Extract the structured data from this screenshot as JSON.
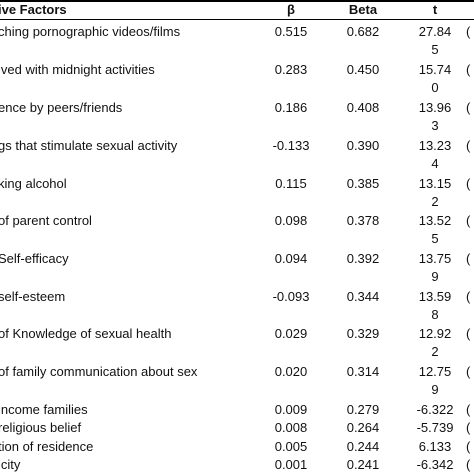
{
  "table": {
    "headers": {
      "factor": "ive Factors",
      "beta_symbol": "β",
      "beta": "Beta",
      "t": "t"
    },
    "rows": [
      {
        "factor": "ching pornographic videos/films",
        "b": "0.515",
        "beta": "0.682",
        "t": "27.84",
        "t_tail": "5"
      },
      {
        "factor": "lved with midnight activities",
        "b": "0.283",
        "beta": "0.450",
        "t": "15.74",
        "t_tail": "0"
      },
      {
        "factor": "ence by peers/friends",
        "b": "0.186",
        "beta": "0.408",
        "t": "13.96",
        "t_tail": "3"
      },
      {
        "factor": "gs that stimulate sexual activity",
        "b": "-0.133",
        "beta": "0.390",
        "t": "13.23",
        "t_tail": "4"
      },
      {
        "factor": "king alcohol",
        "b": "0.115",
        "beta": "0.385",
        "t": "13.15",
        "t_tail": "2"
      },
      {
        "factor": "of parent control",
        "b": "0.098",
        "beta": "0.378",
        "t": "13.52",
        "t_tail": "5"
      },
      {
        "factor": "Self-efficacy",
        "b": "0.094",
        "beta": "0.392",
        "t": "13.75",
        "t_tail": "9"
      },
      {
        "factor": "self-esteem",
        "b": "-0.093",
        "beta": "0.344",
        "t": "13.59",
        "t_tail": "8"
      },
      {
        "factor": "of Knowledge of sexual health",
        "b": "0.029",
        "beta": "0.329",
        "t": "12.92",
        "t_tail": "2"
      },
      {
        "factor": "of family communication about sex",
        "b": "0.020",
        "beta": "0.314",
        "t": "12.75",
        "t_tail": "9"
      },
      {
        "factor": "income families",
        "b": "0.009",
        "beta": "0.279",
        "t": "-6.322",
        "t_tail": ""
      },
      {
        "factor": "religious belief",
        "b": "0.008",
        "beta": "0.264",
        "t": "-5.739",
        "t_tail": ""
      },
      {
        "factor": "tion of residence",
        "b": "0.005",
        "beta": "0.244",
        "t": "6.133",
        "t_tail": ""
      },
      {
        "factor": "icity",
        "b": "0.001",
        "beta": "0.241",
        "t": "-6.342",
        "t_tail": ""
      }
    ]
  }
}
